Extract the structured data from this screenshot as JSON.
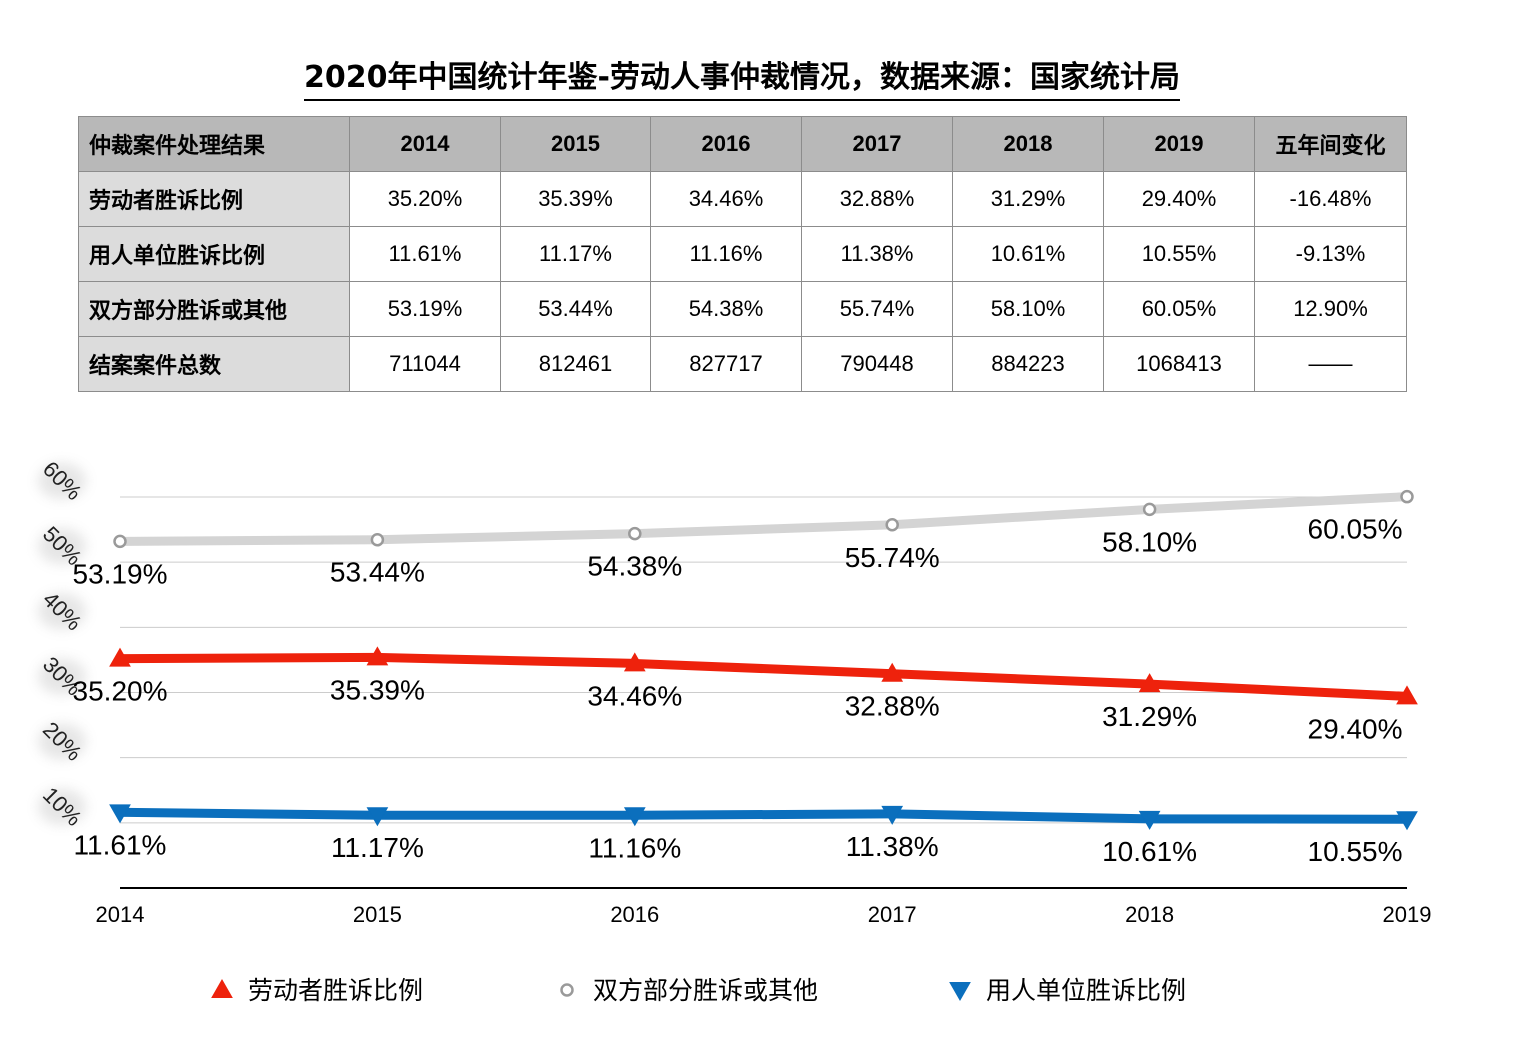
{
  "title": "2020年中国统计年鉴-劳动人事仲裁情况，数据来源：国家统计局",
  "table": {
    "header": [
      "仲裁案件处理结果",
      "2014",
      "2015",
      "2016",
      "2017",
      "2018",
      "2019",
      "五年间变化"
    ],
    "rows": [
      {
        "label": "劳动者胜诉比例",
        "cells": [
          "35.20%",
          "35.39%",
          "34.46%",
          "32.88%",
          "31.29%",
          "29.40%",
          "-16.48%"
        ]
      },
      {
        "label": "用人单位胜诉比例",
        "cells": [
          "11.61%",
          "11.17%",
          "11.16%",
          "11.38%",
          "10.61%",
          "10.55%",
          "-9.13%"
        ]
      },
      {
        "label": "双方部分胜诉或其他",
        "cells": [
          "53.19%",
          "53.44%",
          "54.38%",
          "55.74%",
          "58.10%",
          "60.05%",
          "12.90%"
        ]
      },
      {
        "label": "结案案件总数",
        "cells": [
          "711044",
          "812461",
          "827717",
          "790448",
          "884223",
          "1068413",
          "——"
        ]
      }
    ]
  },
  "chart_data": {
    "type": "line",
    "categories": [
      "2014",
      "2015",
      "2016",
      "2017",
      "2018",
      "2019"
    ],
    "ylim": [
      0,
      60
    ],
    "yticks": [
      "10%",
      "20%",
      "30%",
      "40%",
      "50%",
      "60%"
    ],
    "grid": true,
    "legend_position": "bottom",
    "series": [
      {
        "name": "劳动者胜诉比例",
        "values": [
          35.2,
          35.39,
          34.46,
          32.88,
          31.29,
          29.4
        ],
        "labels": [
          "35.20%",
          "35.39%",
          "34.46%",
          "32.88%",
          "31.29%",
          "29.40%"
        ],
        "color": "#ee220c",
        "marker": "triangle-up"
      },
      {
        "name": "双方部分胜诉或其他",
        "values": [
          53.19,
          53.44,
          54.38,
          55.74,
          58.1,
          60.05
        ],
        "labels": [
          "53.19%",
          "53.44%",
          "54.38%",
          "55.74%",
          "58.10%",
          "60.05%"
        ],
        "color": "#d4d4d4",
        "marker": "circle"
      },
      {
        "name": "用人单位胜诉比例",
        "values": [
          11.61,
          11.17,
          11.16,
          11.38,
          10.61,
          10.55
        ],
        "labels": [
          "11.61%",
          "11.17%",
          "11.16%",
          "11.38%",
          "10.61%",
          "10.55%"
        ],
        "color": "#0b6fbd",
        "marker": "triangle-down"
      }
    ]
  }
}
